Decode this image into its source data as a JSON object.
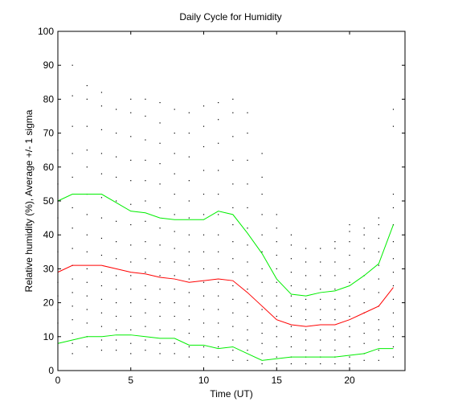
{
  "chart_data": {
    "type": "line",
    "title": "Daily Cycle for Humidity",
    "xlabel": "Time (UT)",
    "ylabel": "Relative humidity (%), Average +/- 1 sigma",
    "xlim": [
      0,
      23.8
    ],
    "ylim": [
      0,
      100
    ],
    "xticks": [
      0,
      5,
      10,
      15,
      20
    ],
    "yticks": [
      0,
      10,
      20,
      30,
      40,
      50,
      60,
      70,
      80,
      90,
      100
    ],
    "grid": false,
    "x": [
      0,
      1,
      2,
      3,
      4,
      5,
      6,
      7,
      8,
      9,
      10,
      11,
      12,
      13,
      14,
      15,
      16,
      17,
      18,
      19,
      20,
      21,
      22,
      23
    ],
    "series": [
      {
        "role": "mean",
        "color": "#ff0000",
        "values": [
          29,
          31,
          31,
          31,
          30,
          29,
          28.5,
          27.5,
          27,
          26,
          26.5,
          27,
          26.5,
          23,
          19,
          15,
          13.5,
          13,
          13.5,
          13.5,
          15,
          17,
          19,
          24.5
        ]
      },
      {
        "role": "mean + 1 sigma",
        "color": "#00ee00",
        "values": [
          50,
          52,
          52,
          52,
          49.5,
          47,
          46.5,
          45,
          44.5,
          44.5,
          44.5,
          47,
          46,
          40.5,
          34.5,
          27,
          22.5,
          22,
          23,
          23.5,
          25,
          28,
          31.5,
          43
        ]
      },
      {
        "role": "mean - 1 sigma",
        "color": "#00ee00",
        "values": [
          8,
          9,
          10,
          10,
          10.5,
          10.5,
          10,
          9.5,
          9.5,
          7.5,
          7.5,
          6.5,
          7,
          5,
          3,
          3.5,
          4,
          4,
          4,
          4,
          4.5,
          5,
          6.5,
          6.5
        ]
      }
    ],
    "scatter_color": "#000000",
    "scatter": [
      {
        "x": 0,
        "y": [
          10,
          14,
          18,
          22,
          26,
          30,
          35,
          40,
          45,
          50,
          55,
          65
        ]
      },
      {
        "x": 1,
        "y": [
          5,
          8,
          11,
          15,
          19,
          23,
          27,
          31,
          36,
          42,
          48,
          57,
          64,
          72,
          81,
          90
        ]
      },
      {
        "x": 2,
        "y": [
          7,
          10,
          14,
          18,
          22,
          26,
          30,
          35,
          40,
          46,
          52,
          60,
          65,
          72,
          80,
          84
        ]
      },
      {
        "x": 3,
        "y": [
          6,
          9,
          13,
          17,
          21,
          25,
          29,
          34,
          39,
          45,
          51,
          58,
          64,
          71,
          78,
          82
        ]
      },
      {
        "x": 4,
        "y": [
          6,
          9,
          12,
          16,
          20,
          24,
          28,
          33,
          38,
          44,
          50,
          57,
          63,
          70,
          77
        ]
      },
      {
        "x": 5,
        "y": [
          5,
          8,
          12,
          16,
          20,
          24,
          28,
          32,
          37,
          43,
          49,
          56,
          62,
          69,
          76,
          80
        ]
      },
      {
        "x": 6,
        "y": [
          6,
          9,
          13,
          17,
          21,
          25,
          29,
          33,
          38,
          44,
          50,
          56,
          62,
          68,
          75,
          80
        ]
      },
      {
        "x": 7,
        "y": [
          5,
          8,
          12,
          16,
          20,
          24,
          28,
          32,
          37,
          42,
          48,
          55,
          61,
          67,
          73,
          79
        ]
      },
      {
        "x": 8,
        "y": [
          5,
          8,
          12,
          16,
          20,
          24,
          28,
          32,
          36,
          41,
          46,
          52,
          58,
          64,
          70,
          77
        ]
      },
      {
        "x": 9,
        "y": [
          4,
          7,
          11,
          15,
          19,
          23,
          27,
          31,
          35,
          40,
          45,
          50,
          56,
          63,
          70,
          76
        ]
      },
      {
        "x": 10,
        "y": [
          4,
          7,
          10,
          14,
          18,
          22,
          26,
          30,
          35,
          40,
          46,
          52,
          59,
          66,
          72,
          78
        ]
      },
      {
        "x": 11,
        "y": [
          4,
          7,
          10,
          14,
          18,
          22,
          26,
          30,
          35,
          40,
          46,
          52,
          59,
          67,
          74,
          79
        ]
      },
      {
        "x": 12,
        "y": [
          3,
          6,
          9,
          13,
          17,
          21,
          25,
          29,
          33,
          38,
          43,
          48,
          55,
          62,
          69,
          76,
          80
        ]
      },
      {
        "x": 13,
        "y": [
          3,
          6,
          9,
          12,
          16,
          20,
          24,
          28,
          32,
          37,
          42,
          48,
          55,
          62,
          70,
          76
        ]
      },
      {
        "x": 14,
        "y": [
          2,
          5,
          8,
          11,
          14,
          18,
          22,
          26,
          30,
          35,
          40,
          46,
          52,
          57,
          64
        ]
      },
      {
        "x": 15,
        "y": [
          2,
          4,
          7,
          10,
          13,
          16,
          19,
          22,
          26,
          30,
          34,
          38,
          42,
          46
        ]
      },
      {
        "x": 16,
        "y": [
          2,
          4,
          7,
          10,
          13,
          16,
          19,
          22,
          25,
          29,
          33,
          37,
          40
        ]
      },
      {
        "x": 17,
        "y": [
          2,
          4,
          6,
          9,
          12,
          15,
          18,
          21,
          24,
          28,
          32,
          36
        ]
      },
      {
        "x": 18,
        "y": [
          2,
          4,
          6,
          9,
          12,
          15,
          18,
          21,
          24,
          28,
          32,
          36
        ]
      },
      {
        "x": 19,
        "y": [
          2,
          4,
          6,
          9,
          12,
          15,
          18,
          21,
          24,
          28,
          32,
          36,
          38
        ]
      },
      {
        "x": 20,
        "y": [
          2,
          4,
          7,
          10,
          13,
          16,
          19,
          22,
          26,
          30,
          34,
          38,
          41,
          43
        ]
      },
      {
        "x": 21,
        "y": [
          3,
          5,
          8,
          11,
          14,
          17,
          20,
          24,
          28,
          32,
          36,
          40,
          42
        ]
      },
      {
        "x": 22,
        "y": [
          3,
          6,
          9,
          12,
          15,
          19,
          23,
          27,
          31,
          35,
          39,
          43,
          45
        ]
      },
      {
        "x": 23,
        "y": [
          4,
          7,
          10,
          13,
          17,
          21,
          25,
          29,
          33,
          38,
          43,
          48,
          52,
          72,
          77
        ]
      }
    ]
  }
}
